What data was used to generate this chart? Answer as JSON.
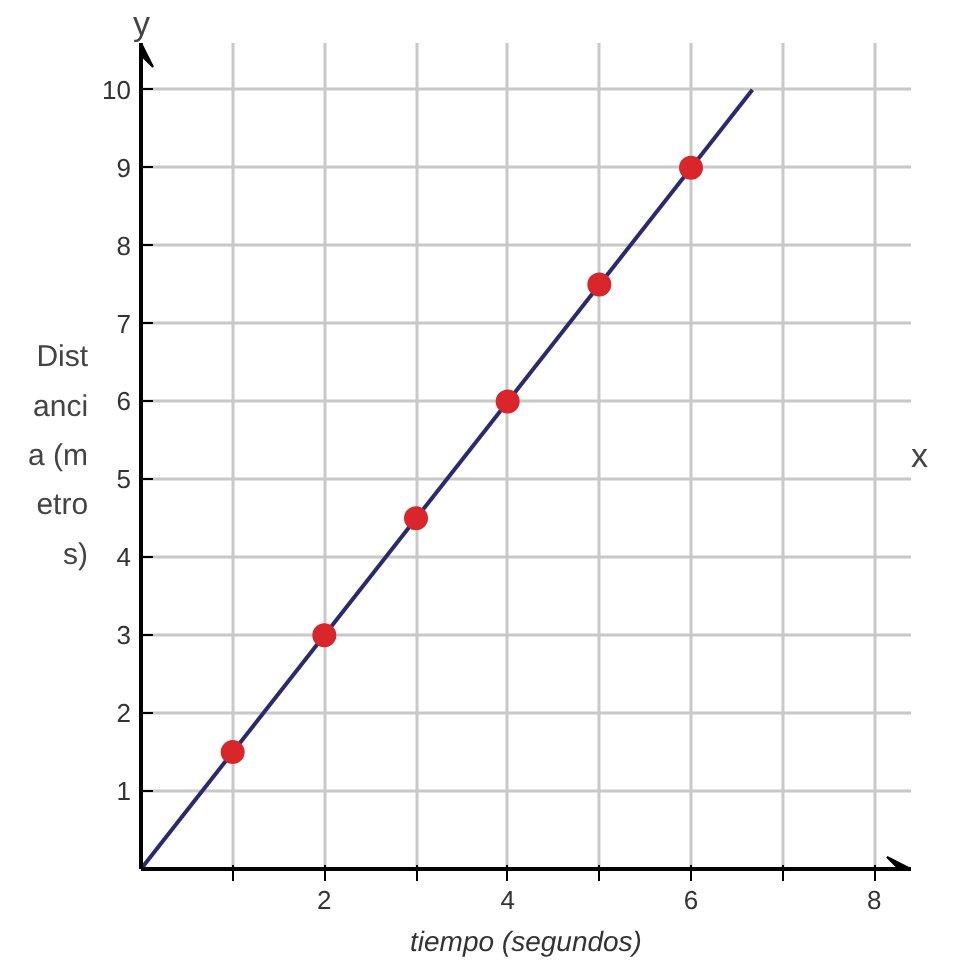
{
  "chart_data": {
    "type": "line",
    "xlabel": "tiempo (segundos)",
    "ylabel": "Distancia (metros)",
    "annotations": [
      "y",
      "x"
    ],
    "xlim": [
      0,
      8.4
    ],
    "ylim": [
      0,
      10.6
    ],
    "xticks": [
      {
        "value": 1,
        "label": null
      },
      2,
      {
        "value": 3,
        "label": null
      },
      4,
      {
        "value": 5,
        "label": null
      },
      6,
      {
        "value": 7,
        "label": null
      },
      8
    ],
    "yticks": [
      1,
      2,
      3,
      4,
      5,
      6,
      7,
      8,
      9,
      10
    ],
    "grid": true,
    "x": [
      1,
      2,
      3,
      4,
      5,
      6
    ],
    "series": [
      {
        "color": "#2b2a6e",
        "x": [
          0,
          6.67
        ],
        "values": [
          0,
          10
        ]
      },
      {
        "type": "scatter",
        "marker": "circle",
        "color": "#d9262a",
        "values": [
          1.5,
          3,
          4.5,
          6,
          7.5,
          9
        ]
      }
    ]
  }
}
